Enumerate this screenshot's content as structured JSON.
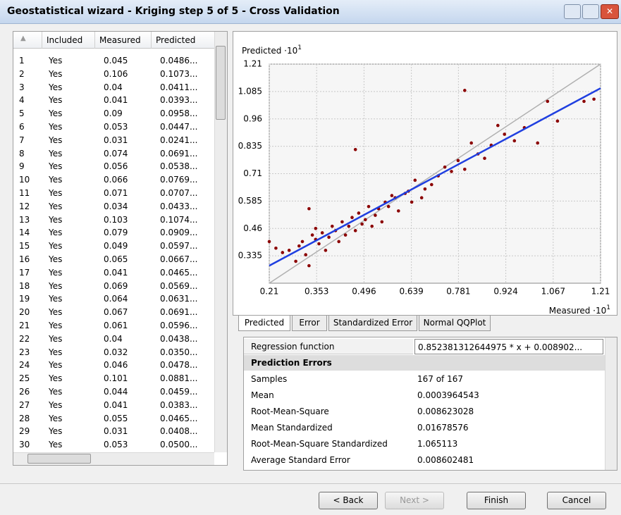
{
  "window": {
    "title": "Geostatistical wizard - Kriging step 5 of 5 - Cross Validation"
  },
  "table": {
    "headers": [
      "Included",
      "Measured",
      "Predicted"
    ],
    "rows": [
      [
        1,
        "Yes",
        0.045,
        "0.0486..."
      ],
      [
        2,
        "Yes",
        0.106,
        "0.1073..."
      ],
      [
        3,
        "Yes",
        0.04,
        "0.0411..."
      ],
      [
        4,
        "Yes",
        0.041,
        "0.0393..."
      ],
      [
        5,
        "Yes",
        0.09,
        "0.0958..."
      ],
      [
        6,
        "Yes",
        0.053,
        "0.0447..."
      ],
      [
        7,
        "Yes",
        0.031,
        "0.0241..."
      ],
      [
        8,
        "Yes",
        0.074,
        "0.0691..."
      ],
      [
        9,
        "Yes",
        0.056,
        "0.0538..."
      ],
      [
        10,
        "Yes",
        0.066,
        "0.0769..."
      ],
      [
        11,
        "Yes",
        0.071,
        "0.0707..."
      ],
      [
        12,
        "Yes",
        0.034,
        "0.0433..."
      ],
      [
        13,
        "Yes",
        0.103,
        "0.1074..."
      ],
      [
        14,
        "Yes",
        0.079,
        "0.0909..."
      ],
      [
        15,
        "Yes",
        0.049,
        "0.0597..."
      ],
      [
        16,
        "Yes",
        0.065,
        "0.0667..."
      ],
      [
        17,
        "Yes",
        0.041,
        "0.0465..."
      ],
      [
        18,
        "Yes",
        0.069,
        "0.0569..."
      ],
      [
        19,
        "Yes",
        0.064,
        "0.0631..."
      ],
      [
        20,
        "Yes",
        0.067,
        "0.0691..."
      ],
      [
        21,
        "Yes",
        0.061,
        "0.0596..."
      ],
      [
        22,
        "Yes",
        0.04,
        "0.0438..."
      ],
      [
        23,
        "Yes",
        0.032,
        "0.0350..."
      ],
      [
        24,
        "Yes",
        0.046,
        "0.0478..."
      ],
      [
        25,
        "Yes",
        0.101,
        "0.0881..."
      ],
      [
        26,
        "Yes",
        0.044,
        "0.0459..."
      ],
      [
        27,
        "Yes",
        0.041,
        "0.0383..."
      ],
      [
        28,
        "Yes",
        0.055,
        "0.0465..."
      ],
      [
        29,
        "Yes",
        0.031,
        "0.0408..."
      ],
      [
        30,
        "Yes",
        0.053,
        "0.0500..."
      ]
    ]
  },
  "chart_data": {
    "type": "scatter",
    "y_label": "Predicted ·10",
    "y_label_exp": "1",
    "x_label": "Measured ·10",
    "x_label_exp": "1",
    "xlim": [
      0.21,
      1.21
    ],
    "ylim": [
      0.21,
      1.21
    ],
    "xticks": [
      0.21,
      0.353,
      0.496,
      0.639,
      0.781,
      0.924,
      1.067,
      1.21
    ],
    "yticks": [
      0.335,
      0.46,
      0.585,
      0.71,
      0.835,
      0.96,
      1.085,
      1.21
    ],
    "grid": true,
    "color": "#8b0000",
    "x": [
      0.21,
      0.23,
      0.25,
      0.27,
      0.29,
      0.3,
      0.31,
      0.32,
      0.33,
      0.34,
      0.35,
      0.35,
      0.36,
      0.37,
      0.38,
      0.39,
      0.4,
      0.41,
      0.42,
      0.43,
      0.44,
      0.45,
      0.46,
      0.47,
      0.48,
      0.49,
      0.5,
      0.51,
      0.52,
      0.53,
      0.54,
      0.55,
      0.56,
      0.57,
      0.58,
      0.59,
      0.6,
      0.62,
      0.63,
      0.64,
      0.65,
      0.67,
      0.68,
      0.7,
      0.72,
      0.74,
      0.76,
      0.78,
      0.8,
      0.82,
      0.84,
      0.86,
      0.88,
      0.9,
      0.92,
      0.95,
      0.98,
      1.02,
      1.05,
      1.08,
      1.16,
      1.19,
      0.47,
      0.33,
      0.8
    ],
    "y": [
      0.4,
      0.37,
      0.35,
      0.36,
      0.31,
      0.38,
      0.4,
      0.34,
      0.29,
      0.43,
      0.46,
      0.41,
      0.39,
      0.44,
      0.36,
      0.42,
      0.47,
      0.45,
      0.4,
      0.49,
      0.43,
      0.47,
      0.51,
      0.45,
      0.53,
      0.48,
      0.5,
      0.56,
      0.47,
      0.52,
      0.55,
      0.49,
      0.58,
      0.56,
      0.61,
      0.6,
      0.54,
      0.62,
      0.63,
      0.58,
      0.68,
      0.6,
      0.64,
      0.66,
      0.7,
      0.74,
      0.72,
      0.77,
      0.73,
      0.85,
      0.8,
      0.78,
      0.84,
      0.93,
      0.89,
      0.86,
      0.92,
      0.85,
      1.04,
      0.95,
      1.04,
      1.05,
      0.82,
      0.55,
      1.09
    ],
    "regression_line": {
      "color": "#1f3fe0",
      "x": [
        0.21,
        1.21
      ],
      "y": [
        0.29,
        1.1
      ]
    },
    "reference_line": {
      "color": "#b0b0b0",
      "x": [
        0.21,
        1.21
      ],
      "y": [
        0.21,
        1.21
      ]
    }
  },
  "tabs": [
    "Predicted",
    "Error",
    "Standardized Error",
    "Normal QQPlot"
  ],
  "properties": {
    "regression": [
      "Regression function",
      "0.852381312644975 * x + 0.008902..."
    ],
    "section": "Prediction Errors",
    "rows": [
      [
        "Samples",
        "167 of 167"
      ],
      [
        "Mean",
        "0.0003964543"
      ],
      [
        "Root-Mean-Square",
        "0.008623028"
      ],
      [
        "Mean Standardized",
        "0.01678576"
      ],
      [
        "Root-Mean-Square Standardized",
        "1.065113"
      ],
      [
        "Average Standard Error",
        "0.008602481"
      ]
    ]
  },
  "buttons": [
    "< Back",
    "Next >",
    "Finish",
    "Cancel"
  ]
}
